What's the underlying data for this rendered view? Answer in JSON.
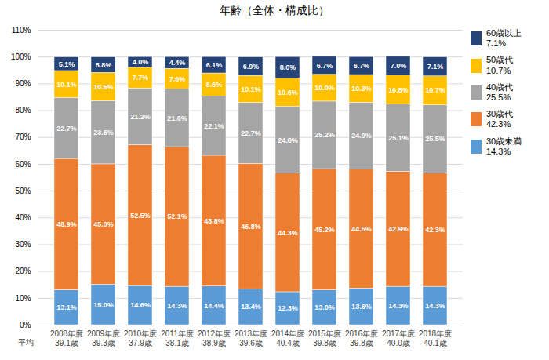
{
  "chart_data": {
    "type": "bar",
    "stacked": true,
    "title": "年齢（全体・構成比）",
    "categories": [
      "2008年度\n39.1歳",
      "2009年度\n39.3歳",
      "2010年度\n37.9歳",
      "2011年度\n38.1歳",
      "2012年度\n38.9歳",
      "2013年度\n39.6歳",
      "2014年度\n40.4歳",
      "2015年度\n39.8歳",
      "2016年度\n39.8歳",
      "2017年度\n40.0歳",
      "2018年度\n40.1歳"
    ],
    "annotations": [
      "平均"
    ],
    "series": [
      {
        "name": "30歳未満\n14.3%",
        "color": "#5b9bd5",
        "values": [
          13.1,
          15.0,
          14.6,
          14.3,
          14.4,
          13.4,
          12.3,
          13.0,
          13.6,
          14.3,
          14.3
        ],
        "value_labels": [
          "13.1%",
          "15.0%",
          "14.6%",
          "14.3%",
          "14.4%",
          "13.4%",
          "12.3%",
          "13.0%",
          "13.6%",
          "14.3%",
          "14.3%"
        ]
      },
      {
        "name": "30歳代\n42.3%",
        "color": "#ed7d31",
        "values": [
          48.9,
          45.0,
          52.5,
          52.1,
          48.8,
          46.8,
          44.3,
          45.2,
          44.5,
          42.9,
          42.3
        ],
        "value_labels": [
          "48.9%",
          "45.0%",
          "52.5%",
          "52.1%",
          "48.8%",
          "46.8%",
          "44.3%",
          "45.2%",
          "44.5%",
          "42.9%",
          "42.3%"
        ]
      },
      {
        "name": "40歳代\n25.5%",
        "color": "#a5a5a5",
        "values": [
          22.7,
          23.6,
          21.2,
          21.6,
          22.1,
          22.7,
          24.8,
          25.2,
          24.9,
          25.1,
          25.5
        ],
        "value_labels": [
          "22.7%",
          "23.6%",
          "21.2%",
          "21.6%",
          "22.1%",
          "22.7%",
          "24.8%",
          "25.2%",
          "24.9%",
          "25.1%",
          "25.5%"
        ]
      },
      {
        "name": "50歳代\n10.7%",
        "color": "#ffc000",
        "values": [
          10.1,
          10.5,
          7.7,
          7.6,
          8.6,
          10.1,
          10.6,
          10.0,
          10.3,
          10.8,
          10.7
        ],
        "value_labels": [
          "10.1%",
          "10.5%",
          "7.7%",
          "7.6%",
          "8.6%",
          "10.1%",
          "10.6%",
          "10.0%",
          "10.3%",
          "10.8%",
          "10.7%"
        ]
      },
      {
        "name": "60歳以上\n7.1%",
        "color": "#264478",
        "values": [
          5.1,
          5.8,
          4.0,
          4.4,
          6.1,
          6.9,
          8.0,
          6.7,
          6.7,
          7.0,
          7.1
        ],
        "value_labels": [
          "5.1%",
          "5.8%",
          "4.0%",
          "4.4%",
          "6.1%",
          "6.9%",
          "8.0%",
          "6.7%",
          "6.7%",
          "7.0%",
          "7.1%"
        ]
      }
    ],
    "ylim": [
      0,
      110
    ],
    "yticks": [
      {
        "value": 0,
        "label": "0%"
      },
      {
        "value": 10,
        "label": "10%"
      },
      {
        "value": 20,
        "label": "20%"
      },
      {
        "value": 30,
        "label": "30%"
      },
      {
        "value": 40,
        "label": "40%"
      },
      {
        "value": 50,
        "label": "50%"
      },
      {
        "value": 60,
        "label": "60%"
      },
      {
        "value": 70,
        "label": "70%"
      },
      {
        "value": 80,
        "label": "80%"
      },
      {
        "value": 90,
        "label": "90%"
      },
      {
        "value": 100,
        "label": "100%"
      },
      {
        "value": 110,
        "label": "110%"
      }
    ],
    "grid": true,
    "data_labels": true,
    "legend": "right"
  }
}
